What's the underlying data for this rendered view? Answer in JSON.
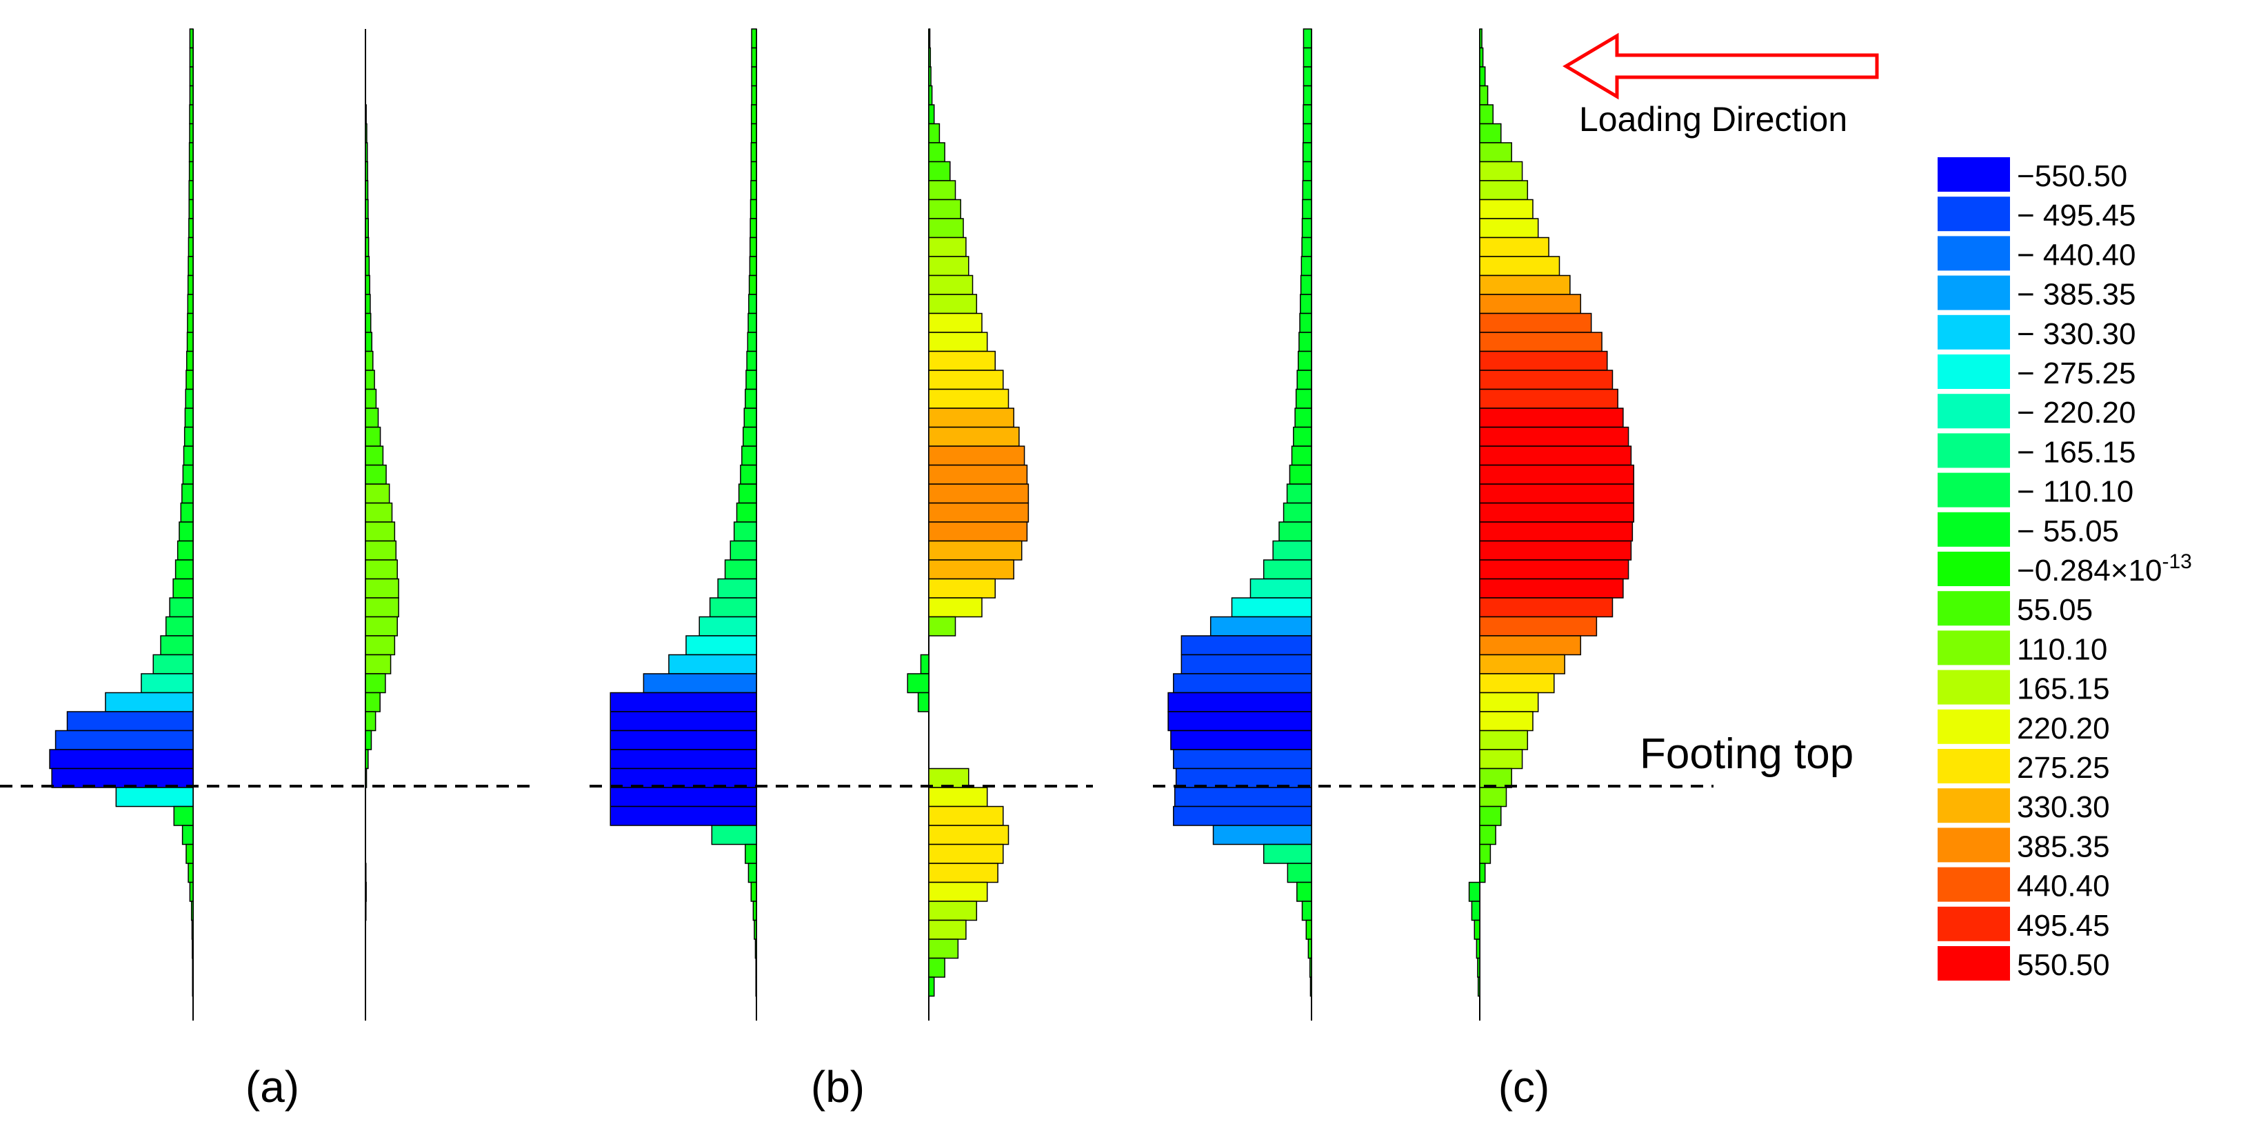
{
  "colors": {
    "bar_stroke": "#000000",
    "dashed_line": "#000000",
    "arrow": "#ff0000",
    "background": "#ffffff"
  },
  "annotations": {
    "loading_direction": "Loading Direction",
    "footing_top": "Footing top"
  },
  "legend": {
    "levels": [
      {
        "label": "−550.50",
        "color": "#0000ff"
      },
      {
        "label": "− 495.45",
        "color": "#0046ff"
      },
      {
        "label": "− 440.40",
        "color": "#0073ff"
      },
      {
        "label": "− 385.35",
        "color": "#00a0ff"
      },
      {
        "label": "− 330.30",
        "color": "#00d2ff"
      },
      {
        "label": "− 275.25",
        "color": "#00ffea"
      },
      {
        "label": "− 220.20",
        "color": "#00ffb8"
      },
      {
        "label": "− 165.15",
        "color": "#00ff86"
      },
      {
        "label": "− 110.10",
        "color": "#00ff54"
      },
      {
        "label": "− 55.05",
        "color": "#00ff22"
      },
      {
        "label": "−0.284×10",
        "sup": "-13",
        "color": "#10ff00"
      },
      {
        "label": "55.05",
        "color": "#46ff00"
      },
      {
        "label": "110.10",
        "color": "#7dff00"
      },
      {
        "label": "165.15",
        "color": "#b4ff00"
      },
      {
        "label": "220.20",
        "color": "#eaff00"
      },
      {
        "label": "275.25",
        "color": "#ffe600"
      },
      {
        "label": "330.30",
        "color": "#ffb400"
      },
      {
        "label": "385.35",
        "color": "#ff8c00"
      },
      {
        "label": "440.40",
        "color": "#ff5a00"
      },
      {
        "label": "495.45",
        "color": "#ff2800"
      },
      {
        "label": "550.50",
        "color": "#ff0000"
      }
    ]
  },
  "panels": [
    {
      "label": "(a)",
      "letter": "a"
    },
    {
      "label": "(b)",
      "letter": "b"
    },
    {
      "label": "(c)",
      "letter": "c"
    }
  ],
  "chart_data": {
    "type": "bar",
    "orientation": "horizontal",
    "value_range": [
      -550.5,
      550.5
    ],
    "footing_top_segment": 40,
    "segment_count": 51,
    "note_segments": "index 0 = top of pile, index 50 = pile tip; footing top lies at the line between segments 39 and 40",
    "series": [
      {
        "panel": "a",
        "side": "left",
        "values": [
          -12,
          -12,
          -12,
          -12,
          -13,
          -13,
          -14,
          -14,
          -15,
          -15,
          -16,
          -17,
          -18,
          -19,
          -20,
          -21,
          -22,
          -24,
          -26,
          -28,
          -30,
          -32,
          -35,
          -38,
          -42,
          -46,
          -52,
          -58,
          -66,
          -75,
          -88,
          -102,
          -122,
          -150,
          -195,
          -330,
          -474,
          -518,
          -540,
          -532,
          -290,
          -72,
          -40,
          -26,
          -18,
          -12,
          -6,
          -4,
          -3,
          -2,
          -2
        ]
      },
      {
        "panel": "a",
        "side": "right",
        "values": [
          0,
          0,
          0,
          0,
          3,
          5,
          7,
          8,
          9,
          10,
          11,
          12,
          14,
          16,
          18,
          20,
          24,
          28,
          34,
          40,
          48,
          56,
          66,
          78,
          90,
          100,
          110,
          115,
          120,
          125,
          125,
          120,
          110,
          95,
          75,
          55,
          38,
          22,
          10,
          4,
          0,
          0,
          0,
          0,
          2,
          3,
          2,
          1,
          0,
          0,
          0
        ]
      },
      {
        "panel": "b",
        "side": "left",
        "values": [
          -18,
          -18,
          -18,
          -18,
          -19,
          -19,
          -20,
          -20,
          -21,
          -22,
          -23,
          -24,
          -25,
          -27,
          -29,
          -31,
          -33,
          -36,
          -39,
          -42,
          -46,
          -50,
          -55,
          -60,
          -66,
          -74,
          -84,
          -98,
          -118,
          -145,
          -175,
          -215,
          -265,
          -330,
          -425,
          -550,
          -550,
          -550,
          -550,
          -550,
          -550,
          -550,
          -168,
          -42,
          -30,
          -20,
          -12,
          -8,
          -4,
          -2,
          -2
        ]
      },
      {
        "panel": "b",
        "side": "right",
        "values": [
          4,
          6,
          8,
          12,
          20,
          40,
          60,
          80,
          100,
          120,
          130,
          140,
          150,
          165,
          180,
          200,
          220,
          250,
          280,
          300,
          320,
          340,
          360,
          370,
          375,
          375,
          370,
          350,
          320,
          250,
          200,
          100,
          0,
          -30,
          -80,
          -40,
          0,
          0,
          0,
          150,
          220,
          280,
          300,
          280,
          260,
          220,
          180,
          140,
          110,
          60,
          20
        ]
      },
      {
        "panel": "c",
        "side": "left",
        "values": [
          -30,
          -30,
          -30,
          -30,
          -31,
          -31,
          -32,
          -32,
          -33,
          -34,
          -35,
          -36,
          -38,
          -40,
          -42,
          -44,
          -47,
          -50,
          -54,
          -58,
          -62,
          -68,
          -74,
          -82,
          -92,
          -105,
          -122,
          -145,
          -180,
          -230,
          -300,
          -380,
          -490,
          -490,
          -520,
          -540,
          -540,
          -530,
          -520,
          -510,
          -515,
          -520,
          -370,
          -180,
          -90,
          -55,
          -35,
          -20,
          -12,
          -6,
          -4
        ]
      },
      {
        "panel": "c",
        "side": "right",
        "values": [
          8,
          12,
          20,
          30,
          50,
          80,
          120,
          160,
          180,
          200,
          220,
          260,
          300,
          340,
          380,
          420,
          460,
          480,
          500,
          520,
          540,
          560,
          570,
          580,
          580,
          580,
          575,
          570,
          560,
          540,
          500,
          440,
          380,
          320,
          280,
          220,
          200,
          180,
          160,
          120,
          100,
          80,
          60,
          40,
          20,
          -40,
          -30,
          -20,
          -12,
          -8,
          -6
        ]
      }
    ]
  }
}
